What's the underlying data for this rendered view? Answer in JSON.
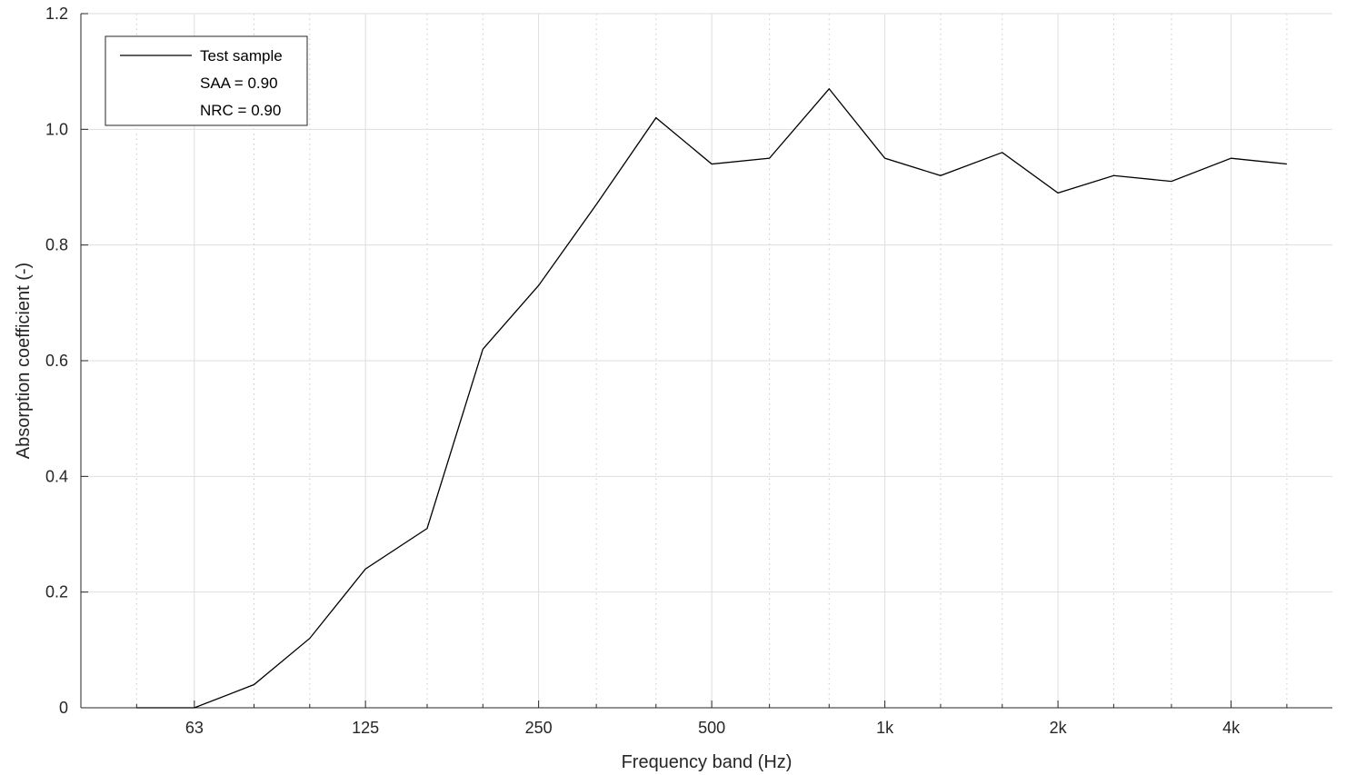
{
  "chart_data": {
    "type": "line",
    "title": "",
    "xlabel": "Frequency band (Hz)",
    "ylabel": "Absorption coefficient (-)",
    "x_scale": "log",
    "xlim": [
      40,
      6000
    ],
    "ylim": [
      0,
      1.2
    ],
    "grid": true,
    "legend_position": "top-left",
    "x_ticks": [
      {
        "value": 63,
        "label": "63"
      },
      {
        "value": 125,
        "label": "125"
      },
      {
        "value": 250,
        "label": "250"
      },
      {
        "value": 500,
        "label": "500"
      },
      {
        "value": 1000,
        "label": "1k"
      },
      {
        "value": 2000,
        "label": "2k"
      },
      {
        "value": 4000,
        "label": "4k"
      }
    ],
    "y_ticks": [
      {
        "value": 0,
        "label": "0"
      },
      {
        "value": 0.2,
        "label": "0.2"
      },
      {
        "value": 0.4,
        "label": "0.4"
      },
      {
        "value": 0.6,
        "label": "0.6"
      },
      {
        "value": 0.8,
        "label": "0.8"
      },
      {
        "value": 1.0,
        "label": "1.0"
      },
      {
        "value": 1.2,
        "label": "1.2"
      }
    ],
    "minor_x_grid": [
      50,
      80,
      100,
      160,
      200,
      315,
      400,
      630,
      800,
      1250,
      1600,
      2500,
      3150,
      5000
    ],
    "legend": {
      "entries": [
        "Test sample",
        "SAA = 0.90",
        "NRC = 0.90"
      ]
    },
    "series": [
      {
        "name": "Test sample",
        "color": "#000000",
        "x": [
          50,
          63,
          80,
          100,
          125,
          160,
          200,
          250,
          315,
          400,
          500,
          630,
          800,
          1000,
          1250,
          1600,
          2000,
          2500,
          3150,
          4000,
          5000
        ],
        "y": [
          0.0,
          0.0,
          0.04,
          0.12,
          0.24,
          0.31,
          0.62,
          0.73,
          0.87,
          1.02,
          0.94,
          0.95,
          1.07,
          0.95,
          0.92,
          0.96,
          0.89,
          0.92,
          0.91,
          0.95,
          0.94
        ]
      }
    ]
  }
}
